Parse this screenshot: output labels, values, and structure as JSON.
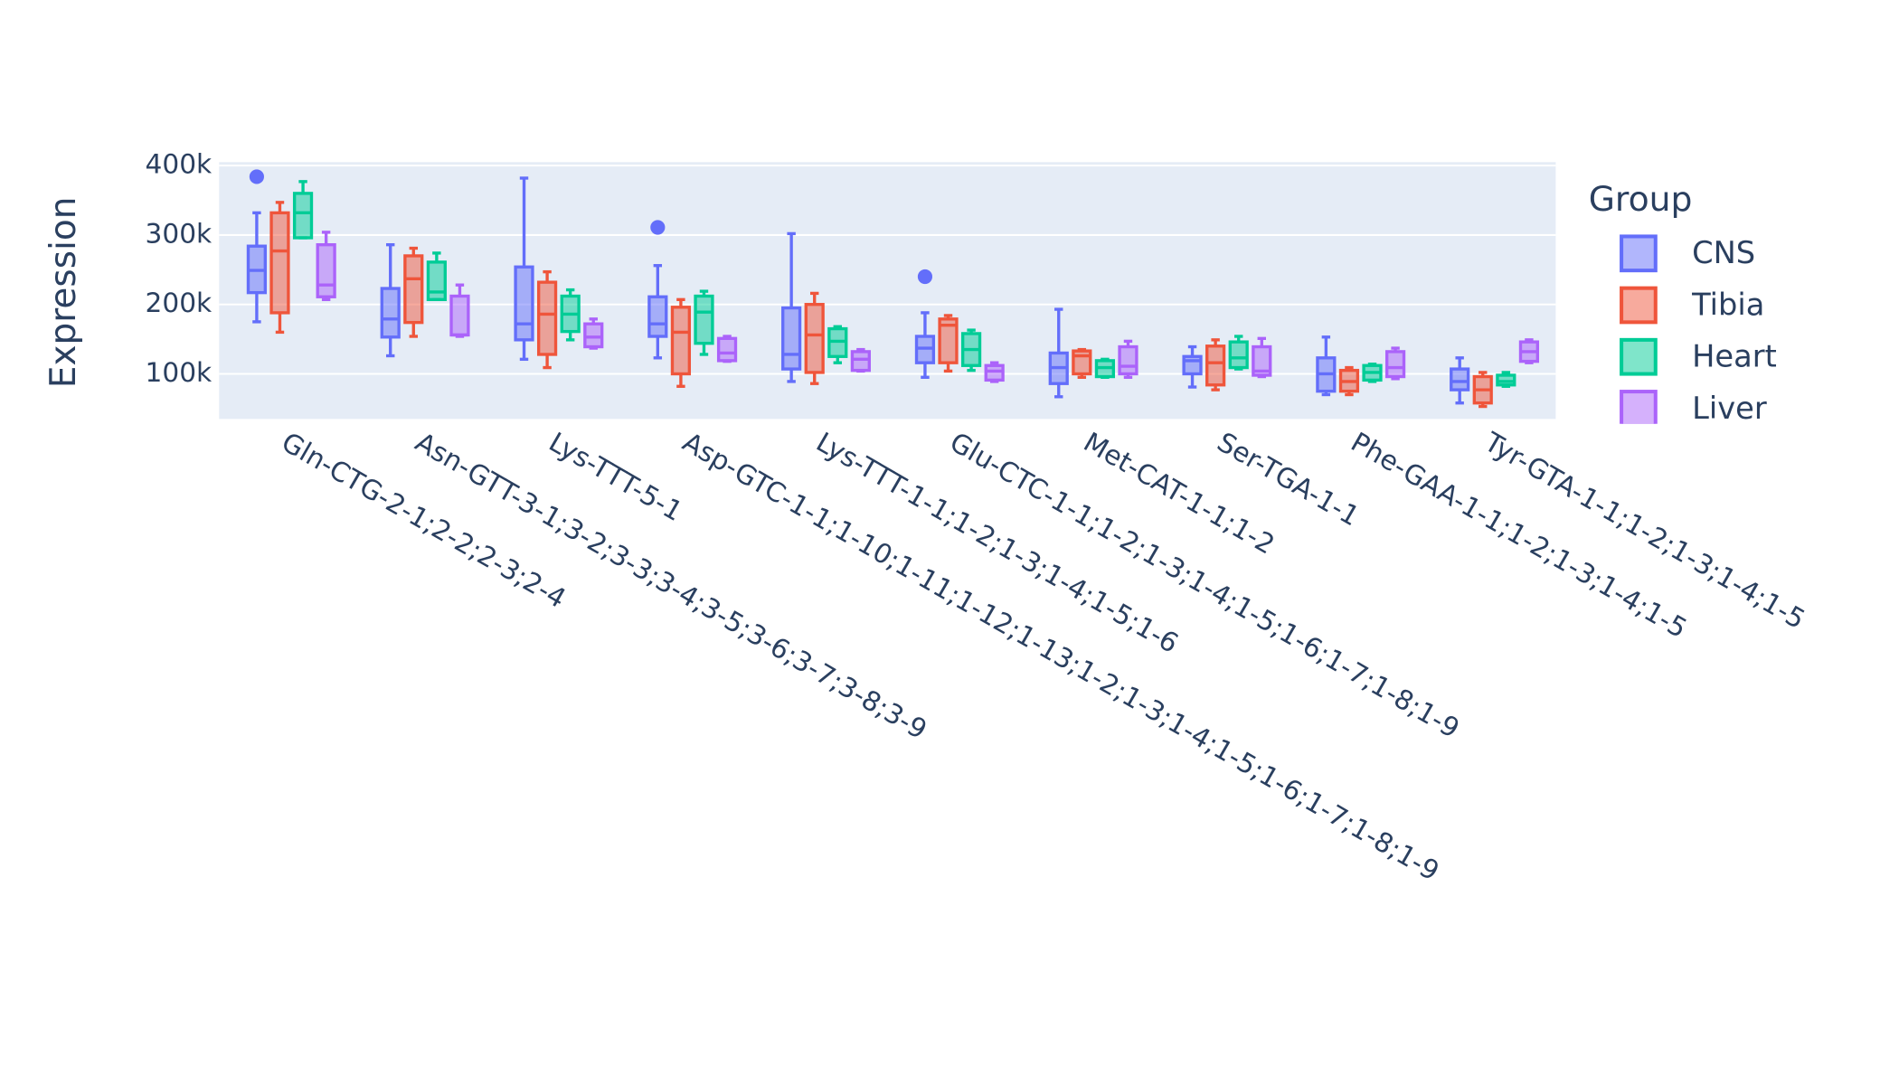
{
  "chart_data": {
    "type": "box",
    "y_label": "Expression",
    "legend_title": "Group",
    "categories": [
      "Gln-CTG-2-1;2-2;2-3;2-4",
      "Asn-GTT-3-1;3-2;3-3;3-4;3-5;3-6;3-7;3-8;3-9",
      "Lys-TTT-5-1",
      "Asp-GTC-1-1;1-10;1-11;1-12;1-13;1-2;1-3;1-4;1-5;1-6;1-7;1-8;1-9",
      "Lys-TTT-1-1;1-2;1-3;1-4;1-5;1-6",
      "Glu-CTC-1-1;1-2;1-3;1-4;1-5;1-6;1-7;1-8;1-9",
      "Met-CAT-1-1;1-2",
      "Ser-TGA-1-1",
      "Phe-GAA-1-1;1-2;1-3;1-4;1-5",
      "Tyr-GTA-1-1;1-2;1-3;1-4;1-5"
    ],
    "ylim": [
      35000,
      405000
    ],
    "yticks": [
      {
        "value": 100000,
        "label": "100k"
      },
      {
        "value": 200000,
        "label": "200k"
      },
      {
        "value": 300000,
        "label": "300k"
      },
      {
        "value": 400000,
        "label": "400k"
      }
    ],
    "grid": true,
    "series": [
      {
        "name": "CNS",
        "color": "#636efa",
        "boxes": [
          {
            "min": 175000,
            "q1": 217000,
            "median": 249000,
            "q3": 284000,
            "max": 332000,
            "outliers": [
              384000
            ]
          },
          {
            "min": 126000,
            "q1": 153000,
            "median": 179000,
            "q3": 223000,
            "max": 286000
          },
          {
            "min": 121000,
            "q1": 149000,
            "median": 172000,
            "q3": 254000,
            "max": 382000
          },
          {
            "min": 123000,
            "q1": 154000,
            "median": 172000,
            "q3": 211000,
            "max": 256000,
            "outliers": [
              311000
            ]
          },
          {
            "min": 89000,
            "q1": 107000,
            "median": 128000,
            "q3": 195000,
            "max": 302000
          },
          {
            "min": 95000,
            "q1": 116000,
            "median": 137000,
            "q3": 154000,
            "max": 188000,
            "outliers": [
              240000
            ]
          },
          {
            "min": 67000,
            "q1": 86000,
            "median": 109000,
            "q3": 130000,
            "max": 193000
          },
          {
            "min": 81000,
            "q1": 100000,
            "median": 119000,
            "q3": 125000,
            "max": 139000
          },
          {
            "min": 70000,
            "q1": 75000,
            "median": 100000,
            "q3": 123000,
            "max": 153000
          },
          {
            "min": 58000,
            "q1": 77000,
            "median": 89000,
            "q3": 107000,
            "max": 123000
          }
        ]
      },
      {
        "name": "Tibia",
        "color": "#ef553b",
        "boxes": [
          {
            "min": 160000,
            "q1": 188000,
            "median": 277000,
            "q3": 332000,
            "max": 347000
          },
          {
            "min": 154000,
            "q1": 174000,
            "median": 237000,
            "q3": 270000,
            "max": 281000
          },
          {
            "min": 109000,
            "q1": 128000,
            "median": 186000,
            "q3": 232000,
            "max": 247000
          },
          {
            "min": 82000,
            "q1": 100000,
            "median": 160000,
            "q3": 196000,
            "max": 207000
          },
          {
            "min": 86000,
            "q1": 102000,
            "median": 156000,
            "q3": 200000,
            "max": 216000
          },
          {
            "min": 104000,
            "q1": 116000,
            "median": 170000,
            "q3": 179000,
            "max": 184000
          },
          {
            "min": 95000,
            "q1": 100000,
            "median": 126000,
            "q3": 133000,
            "max": 135000
          },
          {
            "min": 77000,
            "q1": 84000,
            "median": 116000,
            "q3": 140000,
            "max": 149000
          },
          {
            "min": 70000,
            "q1": 75000,
            "median": 89000,
            "q3": 105000,
            "max": 109000
          },
          {
            "min": 53000,
            "q1": 58000,
            "median": 77000,
            "q3": 96000,
            "max": 102000
          }
        ]
      },
      {
        "name": "Heart",
        "color": "#00cc96",
        "boxes": [
          {
            "min": 296000,
            "q1": 296000,
            "median": 332000,
            "q3": 360000,
            "max": 377000
          },
          {
            "min": 207000,
            "q1": 207000,
            "median": 218000,
            "q3": 261000,
            "max": 274000
          },
          {
            "min": 149000,
            "q1": 161000,
            "median": 186000,
            "q3": 212000,
            "max": 221000
          },
          {
            "min": 128000,
            "q1": 144000,
            "median": 189000,
            "q3": 212000,
            "max": 219000
          },
          {
            "min": 116000,
            "q1": 125000,
            "median": 147000,
            "q3": 165000,
            "max": 168000
          },
          {
            "min": 105000,
            "q1": 112000,
            "median": 135000,
            "q3": 158000,
            "max": 163000
          },
          {
            "min": 95000,
            "q1": 96000,
            "median": 109000,
            "q3": 119000,
            "max": 121000
          },
          {
            "min": 107000,
            "q1": 109000,
            "median": 123000,
            "q3": 146000,
            "max": 154000
          },
          {
            "min": 89000,
            "q1": 91000,
            "median": 102000,
            "q3": 112000,
            "max": 114000
          },
          {
            "min": 82000,
            "q1": 84000,
            "median": 89000,
            "q3": 98000,
            "max": 102000
          }
        ]
      },
      {
        "name": "Liver",
        "color": "#ab63fa",
        "boxes": [
          {
            "min": 207000,
            "q1": 211000,
            "median": 228000,
            "q3": 286000,
            "max": 304000
          },
          {
            "min": 154000,
            "q1": 156000,
            "median": 156000,
            "q3": 212000,
            "max": 228000
          },
          {
            "min": 137000,
            "q1": 139000,
            "median": 153000,
            "q3": 172000,
            "max": 179000
          },
          {
            "min": 118000,
            "q1": 119000,
            "median": 130000,
            "q3": 151000,
            "max": 154000
          },
          {
            "min": 104000,
            "q1": 105000,
            "median": 121000,
            "q3": 132000,
            "max": 135000
          },
          {
            "min": 89000,
            "q1": 91000,
            "median": 104000,
            "q3": 112000,
            "max": 116000
          },
          {
            "min": 95000,
            "q1": 100000,
            "median": 111000,
            "q3": 139000,
            "max": 147000
          },
          {
            "min": 96000,
            "q1": 98000,
            "median": 104000,
            "q3": 139000,
            "max": 151000
          },
          {
            "min": 93000,
            "q1": 96000,
            "median": 109000,
            "q3": 132000,
            "max": 137000
          },
          {
            "min": 116000,
            "q1": 118000,
            "median": 132000,
            "q3": 146000,
            "max": 149000
          }
        ]
      }
    ]
  }
}
